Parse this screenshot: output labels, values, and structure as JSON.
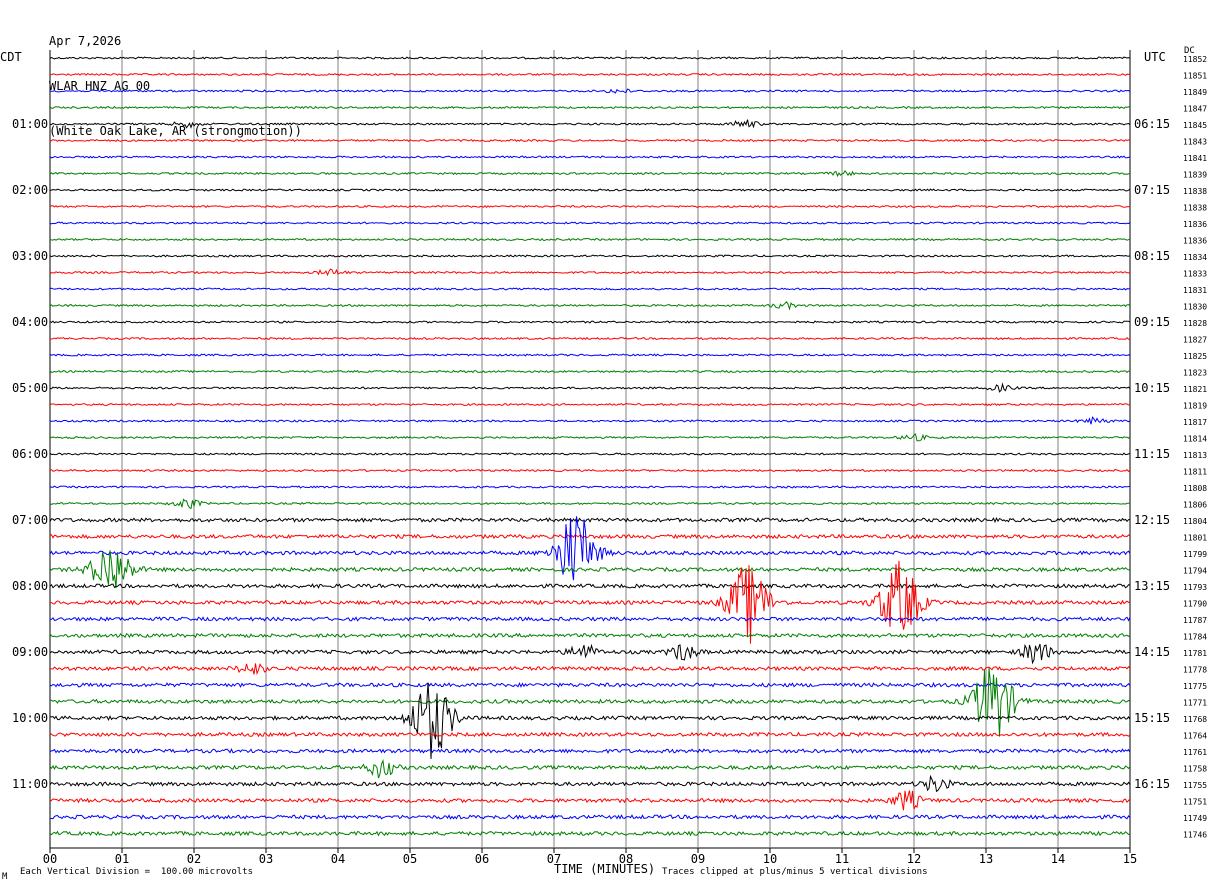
{
  "header": {
    "date": "Apr 7,2026",
    "station": "WLAR HNZ AG 00",
    "location": "(White Oak Lake, AR (strongmotion))"
  },
  "left_label": "CDT",
  "right_label": "UTC",
  "dc_label": "DC",
  "footer": {
    "scale_note": "Each Vertical Division =  100.00 microvolts",
    "clip_note": "Traces clipped at plus/minus 5 vertical divisions",
    "corner_mark": "M"
  },
  "colors": {
    "cycle": [
      "#000000",
      "#ff0000",
      "#0000ff",
      "#007f00"
    ],
    "grid": "#808080"
  },
  "chart_data": {
    "type": "line",
    "title": "",
    "xlabel": "TIME (MINUTES)",
    "xlim": [
      0,
      15
    ],
    "x_ticks": [
      "00",
      "01",
      "02",
      "03",
      "04",
      "05",
      "06",
      "07",
      "08",
      "09",
      "10",
      "11",
      "12",
      "13",
      "14",
      "15"
    ],
    "trace_count": 48,
    "left_time_labels": [
      "01:00",
      "02:00",
      "03:00",
      "04:00",
      "05:00",
      "06:00",
      "07:00",
      "08:00",
      "09:00",
      "10:00",
      "11:00"
    ],
    "right_time_labels": [
      "06:15",
      "07:15",
      "08:15",
      "09:15",
      "10:15",
      "11:15",
      "12:15",
      "13:15",
      "14:15",
      "15:15",
      "16:15"
    ],
    "time_label_first_trace": 4,
    "time_label_every": 4,
    "dc_offsets": [
      "11852",
      "11851",
      "11849",
      "11847",
      "11845",
      "11843",
      "11841",
      "11839",
      "11838",
      "11838",
      "11836",
      "11836",
      "11834",
      "11833",
      "11831",
      "11830",
      "11828",
      "11827",
      "11825",
      "11823",
      "11821",
      "11819",
      "11817",
      "11814",
      "11813",
      "11811",
      "11808",
      "11806",
      "11804",
      "11801",
      "11799",
      "11794",
      "11793",
      "11790",
      "11787",
      "11784",
      "11781",
      "11778",
      "11775",
      "11771",
      "11768",
      "11764",
      "11761",
      "11758",
      "11755",
      "11751",
      "11749",
      "11746"
    ],
    "events": [
      {
        "trace": 2,
        "minute": 7.9,
        "amplitude": 2
      },
      {
        "trace": 4,
        "minute": 1.9,
        "amplitude": 3
      },
      {
        "trace": 4,
        "minute": 9.65,
        "amplitude": 4
      },
      {
        "trace": 7,
        "minute": 11.0,
        "amplitude": 2
      },
      {
        "trace": 13,
        "minute": 3.9,
        "amplitude": 3
      },
      {
        "trace": 15,
        "minute": 10.2,
        "amplitude": 3
      },
      {
        "trace": 20,
        "minute": 13.2,
        "amplitude": 3
      },
      {
        "trace": 22,
        "minute": 14.5,
        "amplitude": 3
      },
      {
        "trace": 23,
        "minute": 12.0,
        "amplitude": 3
      },
      {
        "trace": 27,
        "minute": 1.9,
        "amplitude": 5
      },
      {
        "trace": 30,
        "minute": 7.3,
        "amplitude": 40
      },
      {
        "trace": 31,
        "minute": 0.85,
        "amplitude": 25
      },
      {
        "trace": 33,
        "minute": 9.7,
        "amplitude": 40
      },
      {
        "trace": 33,
        "minute": 11.8,
        "amplitude": 40
      },
      {
        "trace": 36,
        "minute": 7.4,
        "amplitude": 8
      },
      {
        "trace": 36,
        "minute": 8.8,
        "amplitude": 8
      },
      {
        "trace": 36,
        "minute": 13.7,
        "amplitude": 12
      },
      {
        "trace": 37,
        "minute": 2.8,
        "amplitude": 6
      },
      {
        "trace": 39,
        "minute": 13.1,
        "amplitude": 40
      },
      {
        "trace": 40,
        "minute": 5.3,
        "amplitude": 40
      },
      {
        "trace": 43,
        "minute": 4.6,
        "amplitude": 10
      },
      {
        "trace": 44,
        "minute": 12.3,
        "amplitude": 8
      },
      {
        "trace": 45,
        "minute": 11.9,
        "amplitude": 10
      }
    ]
  }
}
